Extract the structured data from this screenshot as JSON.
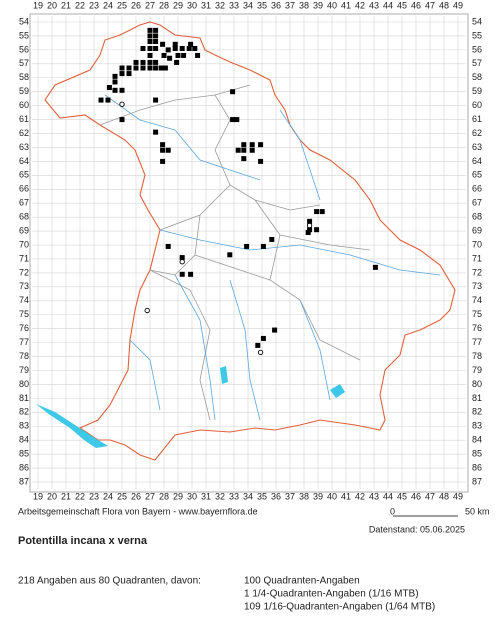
{
  "map": {
    "x_labels": [
      19,
      20,
      21,
      22,
      23,
      24,
      25,
      26,
      27,
      28,
      29,
      30,
      31,
      32,
      33,
      34,
      35,
      36,
      37,
      38,
      39,
      40,
      41,
      42,
      43,
      44,
      45,
      46,
      47,
      48,
      49
    ],
    "y_labels": [
      54,
      55,
      56,
      57,
      58,
      59,
      60,
      61,
      62,
      63,
      64,
      65,
      66,
      67,
      68,
      69,
      70,
      71,
      72,
      73,
      74,
      75,
      76,
      77,
      78,
      79,
      80,
      81,
      82,
      83,
      84,
      85,
      86,
      87
    ],
    "squares": [
      [
        27,
        54.6
      ],
      [
        27.4,
        54.6
      ],
      [
        27,
        55
      ],
      [
        27.4,
        55
      ],
      [
        27,
        55.4
      ],
      [
        27.4,
        55.4
      ],
      [
        27,
        55.9
      ],
      [
        26.5,
        55.9
      ],
      [
        27.4,
        55.9
      ],
      [
        28.8,
        55.6
      ],
      [
        28.8,
        55.9
      ],
      [
        29.3,
        55.9
      ],
      [
        29.8,
        55.9
      ],
      [
        27.9,
        55.6
      ],
      [
        28.3,
        56
      ],
      [
        29,
        56.4
      ],
      [
        29.4,
        56.4
      ],
      [
        29.9,
        55.6
      ],
      [
        30.2,
        55.9
      ],
      [
        30.4,
        56.4
      ],
      [
        27,
        56.4
      ],
      [
        28,
        56.4
      ],
      [
        28.4,
        56.6
      ],
      [
        28.9,
        56.9
      ],
      [
        27,
        56.9
      ],
      [
        27.4,
        56.9
      ],
      [
        26.5,
        56.9
      ],
      [
        26,
        56.9
      ],
      [
        26,
        57.3
      ],
      [
        26.5,
        57.3
      ],
      [
        27,
        57.3
      ],
      [
        27.4,
        57.3
      ],
      [
        27.8,
        57.3
      ],
      [
        28.1,
        57.3
      ],
      [
        25,
        57.3
      ],
      [
        25.5,
        57.3
      ],
      [
        25,
        57.7
      ],
      [
        25.5,
        57.7
      ],
      [
        24.5,
        57.9
      ],
      [
        24.5,
        58.3
      ],
      [
        24.1,
        58.7
      ],
      [
        24.5,
        58.9
      ],
      [
        23.5,
        59.6
      ],
      [
        24,
        59.6
      ],
      [
        25,
        58.9
      ],
      [
        27.4,
        59.6
      ],
      [
        25,
        61
      ],
      [
        27.4,
        61.9
      ],
      [
        27.9,
        62.8
      ],
      [
        28.3,
        63.2
      ],
      [
        27.9,
        63.2
      ],
      [
        27.9,
        64
      ],
      [
        32.9,
        59
      ],
      [
        32.9,
        61
      ],
      [
        33.2,
        61
      ],
      [
        33.7,
        62.8
      ],
      [
        34.3,
        62.8
      ],
      [
        33.7,
        63.2
      ],
      [
        34.3,
        63.2
      ],
      [
        33.3,
        63.2
      ],
      [
        33.7,
        63.8
      ],
      [
        34.9,
        64
      ],
      [
        34.9,
        62.8
      ],
      [
        39.3,
        67.6
      ],
      [
        38.9,
        67.6
      ],
      [
        38.4,
        68.3
      ],
      [
        38.9,
        68.9
      ],
      [
        38.4,
        68.9
      ],
      [
        38.3,
        69.1
      ],
      [
        28.3,
        70.1
      ],
      [
        33.9,
        70.1
      ],
      [
        32.7,
        70.7
      ],
      [
        35.1,
        70.1
      ],
      [
        29.3,
        70.9
      ],
      [
        29.9,
        72.1
      ],
      [
        29.3,
        72.1
      ],
      [
        35.7,
        69.6
      ],
      [
        43.1,
        71.6
      ],
      [
        35.9,
        76.1
      ],
      [
        35.1,
        76.7
      ],
      [
        34.7,
        77.2
      ]
    ],
    "circles": [
      [
        25,
        59.9
      ],
      [
        38.4,
        68.6
      ],
      [
        26.8,
        74.7
      ],
      [
        34.9,
        77.7
      ],
      [
        29.3,
        71.2
      ]
    ]
  },
  "footer": {
    "credit": "Arbeitsgemeinschaft Flora von Bayern - www.bayernflora.de",
    "scale_start": "0",
    "scale_end": "50 km",
    "date": "Datenstand: 05.06.2025"
  },
  "title": "Potentilla incana x verna",
  "summary": {
    "total": "218 Angaben aus 80 Quadranten, davon:",
    "lines": [
      "100 Quadranten-Angaben",
      "1 1/4-Quadranten-Angaben (1/16 MTB)",
      "109 1/16-Quadranten-Angaben (1/64 MTB)"
    ]
  }
}
